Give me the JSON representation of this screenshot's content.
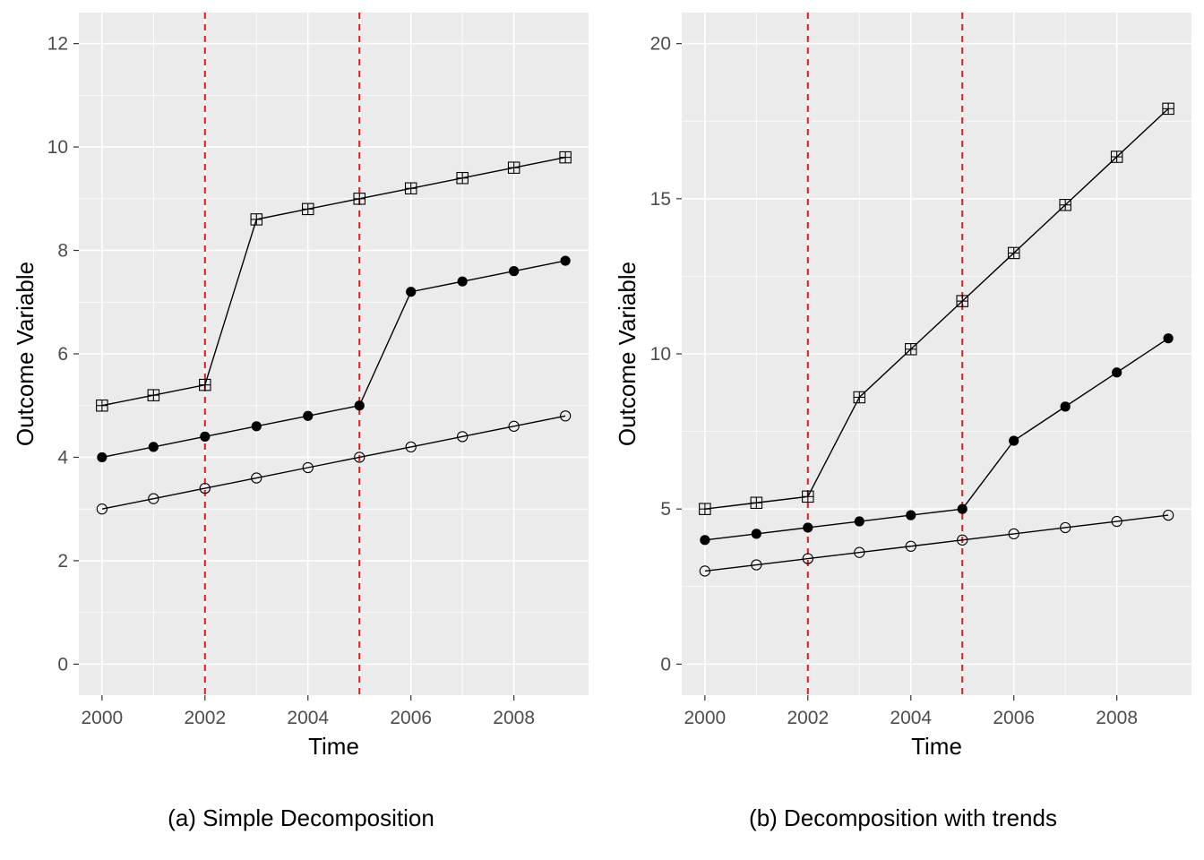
{
  "chart_data": [
    {
      "type": "line",
      "caption": "(a) Simple Decomposition",
      "xlabel": "Time",
      "ylabel": "Outcome Variable",
      "xlim": [
        1999.55,
        2009.45
      ],
      "ylim": [
        -0.6,
        12.6
      ],
      "x_ticks": [
        2000,
        2002,
        2004,
        2006,
        2008
      ],
      "y_ticks": [
        0,
        2,
        4,
        6,
        8,
        10,
        12
      ],
      "grid": true,
      "vlines": [
        2002,
        2005
      ],
      "vline_color": "#e41a1c",
      "x": [
        2000,
        2001,
        2002,
        2003,
        2004,
        2005,
        2006,
        2007,
        2008,
        2009
      ],
      "series": [
        {
          "marker": "square-plus",
          "values": [
            5.0,
            5.2,
            5.4,
            8.6,
            8.8,
            9.0,
            9.2,
            9.4,
            9.6,
            9.8
          ]
        },
        {
          "marker": "filled-circle",
          "values": [
            4.0,
            4.2,
            4.4,
            4.6,
            4.8,
            5.0,
            7.2,
            7.4,
            7.6,
            7.8
          ]
        },
        {
          "marker": "open-circle",
          "values": [
            3.0,
            3.2,
            3.4,
            3.6,
            3.8,
            4.0,
            4.2,
            4.4,
            4.6,
            4.8
          ]
        }
      ]
    },
    {
      "type": "line",
      "caption": "(b) Decomposition with trends",
      "xlabel": "Time",
      "ylabel": "Outcome Variable",
      "xlim": [
        1999.55,
        2009.45
      ],
      "ylim": [
        -1.0,
        21.0
      ],
      "x_ticks": [
        2000,
        2002,
        2004,
        2006,
        2008
      ],
      "y_ticks": [
        0,
        5,
        10,
        15,
        20
      ],
      "grid": true,
      "vlines": [
        2002,
        2005
      ],
      "vline_color": "#e41a1c",
      "x": [
        2000,
        2001,
        2002,
        2003,
        2004,
        2005,
        2006,
        2007,
        2008,
        2009
      ],
      "series": [
        {
          "marker": "square-plus",
          "values": [
            5.0,
            5.2,
            5.4,
            8.6,
            10.15,
            11.7,
            13.25,
            14.8,
            16.35,
            17.9
          ]
        },
        {
          "marker": "filled-circle",
          "values": [
            4.0,
            4.2,
            4.4,
            4.6,
            4.8,
            5.0,
            7.2,
            8.3,
            9.4,
            10.5
          ]
        },
        {
          "marker": "open-circle",
          "values": [
            3.0,
            3.2,
            3.4,
            3.6,
            3.8,
            4.0,
            4.2,
            4.4,
            4.6,
            4.8
          ]
        }
      ]
    }
  ]
}
